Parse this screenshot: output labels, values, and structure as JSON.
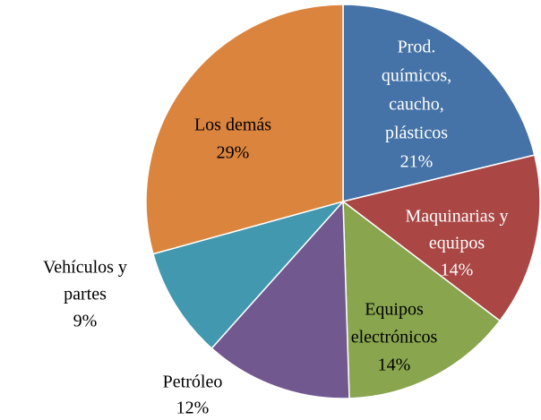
{
  "chart_data": {
    "type": "pie",
    "categories": [
      [
        "Prod.",
        "químicos,",
        "caucho,",
        "plásticos"
      ],
      [
        "Maquinarias y",
        "equipos"
      ],
      [
        "Equipos",
        "electrónicos"
      ],
      [
        "Petróleo"
      ],
      [
        "Vehículos    y",
        "partes"
      ],
      [
        "Los demás"
      ]
    ],
    "values": [
      21,
      14,
      14,
      12,
      9,
      29
    ],
    "value_labels": [
      "21%",
      "14%",
      "14%",
      "12%",
      "9%",
      "29%"
    ],
    "colors": [
      "#4572a7",
      "#aa4643",
      "#89a54e",
      "#71588f",
      "#4198af",
      "#db843d"
    ]
  }
}
